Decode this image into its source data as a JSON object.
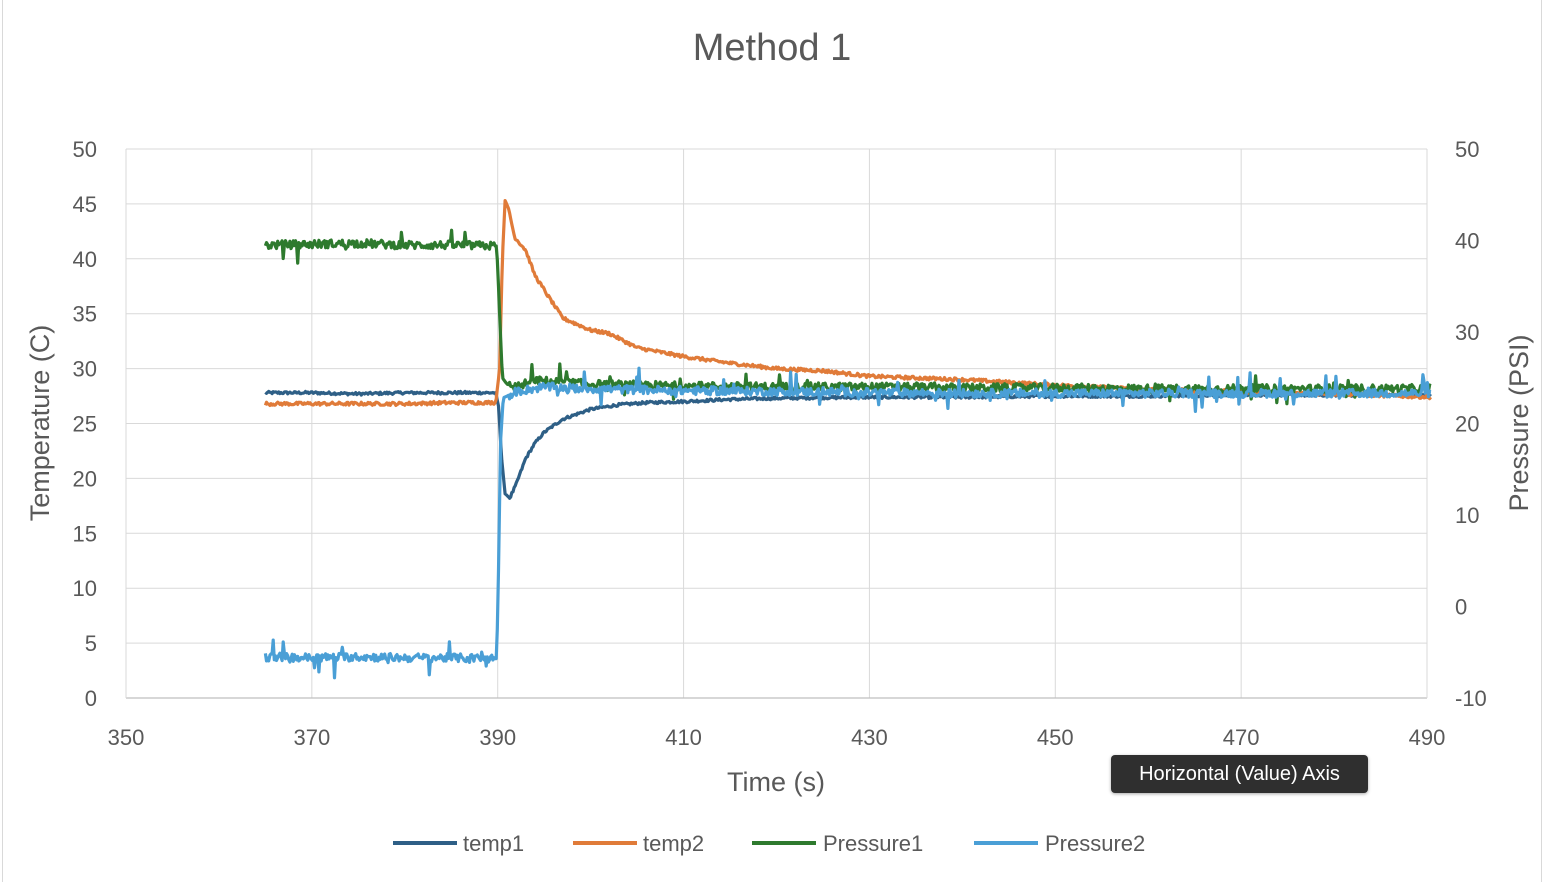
{
  "chart_data": {
    "type": "line",
    "title": "Method 1",
    "xlabel": "Time (s)",
    "ylabel": "Temperature (C)",
    "y2label": "Pressure (PSI)",
    "xlim": [
      350,
      490
    ],
    "ylim": [
      0,
      50
    ],
    "y2lim": [
      -10,
      50
    ],
    "xticks": [
      "350",
      "370",
      "390",
      "410",
      "430",
      "450",
      "470",
      "490"
    ],
    "yticks": [
      "0",
      "5",
      "10",
      "15",
      "20",
      "25",
      "30",
      "35",
      "40",
      "45",
      "50"
    ],
    "y2ticks": [
      "-10",
      "0",
      "10",
      "20",
      "30",
      "40",
      "50"
    ],
    "grid": true,
    "legend_position": "bottom",
    "series": [
      {
        "name": "temp1",
        "axis": "primary",
        "color": "#2e5f86",
        "points": [
          [
            365,
            27.8
          ],
          [
            370,
            27.8
          ],
          [
            375,
            27.7
          ],
          [
            380,
            27.8
          ],
          [
            385,
            27.8
          ],
          [
            389.8,
            27.8
          ],
          [
            390.1,
            26.5
          ],
          [
            390.4,
            22
          ],
          [
            390.8,
            18.6
          ],
          [
            391.3,
            18.2
          ],
          [
            392,
            19.5
          ],
          [
            393,
            21.8
          ],
          [
            394,
            23.2
          ],
          [
            395,
            24.2
          ],
          [
            397,
            25.4
          ],
          [
            400,
            26.3
          ],
          [
            403,
            26.7
          ],
          [
            406,
            26.9
          ],
          [
            410,
            27.0
          ],
          [
            415,
            27.2
          ],
          [
            420,
            27.3
          ],
          [
            430,
            27.4
          ],
          [
            440,
            27.4
          ],
          [
            450,
            27.5
          ],
          [
            460,
            27.5
          ],
          [
            470,
            27.6
          ],
          [
            480,
            27.6
          ],
          [
            490.5,
            27.6
          ]
        ]
      },
      {
        "name": "temp2",
        "axis": "primary",
        "color": "#e07b39",
        "points": [
          [
            365,
            26.8
          ],
          [
            370,
            26.8
          ],
          [
            375,
            26.8
          ],
          [
            380,
            26.8
          ],
          [
            385,
            26.9
          ],
          [
            389.8,
            26.9
          ],
          [
            390.2,
            30
          ],
          [
            390.5,
            40
          ],
          [
            390.8,
            45.3
          ],
          [
            391.2,
            44.5
          ],
          [
            391.8,
            42
          ],
          [
            393,
            40.8
          ],
          [
            394,
            38.5
          ],
          [
            395.5,
            36.5
          ],
          [
            397,
            34.6
          ],
          [
            400,
            33.5
          ],
          [
            402,
            33.2
          ],
          [
            405,
            31.9
          ],
          [
            410,
            31.1
          ],
          [
            415,
            30.5
          ],
          [
            420,
            30.0
          ],
          [
            425,
            29.8
          ],
          [
            430,
            29.3
          ],
          [
            440,
            29.0
          ],
          [
            450,
            28.5
          ],
          [
            460,
            28.1
          ],
          [
            470,
            27.9
          ],
          [
            480,
            27.7
          ],
          [
            490.5,
            27.4
          ]
        ]
      },
      {
        "name": "Pressure1",
        "axis": "secondary",
        "color": "#2e7a2e",
        "points": [
          [
            365,
            39.5
          ],
          [
            370,
            39.6
          ],
          [
            375,
            39.7
          ],
          [
            380,
            39.5
          ],
          [
            385,
            39.5
          ],
          [
            389.9,
            39.4
          ],
          [
            390.2,
            32
          ],
          [
            390.5,
            25
          ],
          [
            391,
            24.3
          ],
          [
            392,
            24.0
          ],
          [
            394,
            24.7
          ],
          [
            396,
            24.6
          ],
          [
            400,
            24.3
          ],
          [
            410,
            24.1
          ],
          [
            420,
            24.0
          ],
          [
            430,
            24.0
          ],
          [
            440,
            23.9
          ],
          [
            450,
            23.9
          ],
          [
            460,
            23.8
          ],
          [
            470,
            23.8
          ],
          [
            480,
            23.8
          ],
          [
            490.5,
            23.8
          ]
        ]
      },
      {
        "name": "Pressure2",
        "axis": "secondary",
        "color": "#4a9fd6",
        "points": [
          [
            365,
            -5.5
          ],
          [
            370,
            -5.6
          ],
          [
            375,
            -5.5
          ],
          [
            380,
            -5.6
          ],
          [
            385,
            -5.6
          ],
          [
            389.9,
            -5.7
          ],
          [
            390.1,
            5
          ],
          [
            390.3,
            18
          ],
          [
            390.6,
            22.8
          ],
          [
            392,
            23.5
          ],
          [
            395,
            24.0
          ],
          [
            400,
            23.8
          ],
          [
            410,
            23.6
          ],
          [
            420,
            23.5
          ],
          [
            430,
            23.4
          ],
          [
            440,
            23.3
          ],
          [
            450,
            23.3
          ],
          [
            460,
            23.3
          ],
          [
            470,
            23.3
          ],
          [
            480,
            23.3
          ],
          [
            490.5,
            23.3
          ]
        ]
      }
    ]
  },
  "tooltip": {
    "text": "Horizontal (Value) Axis"
  }
}
